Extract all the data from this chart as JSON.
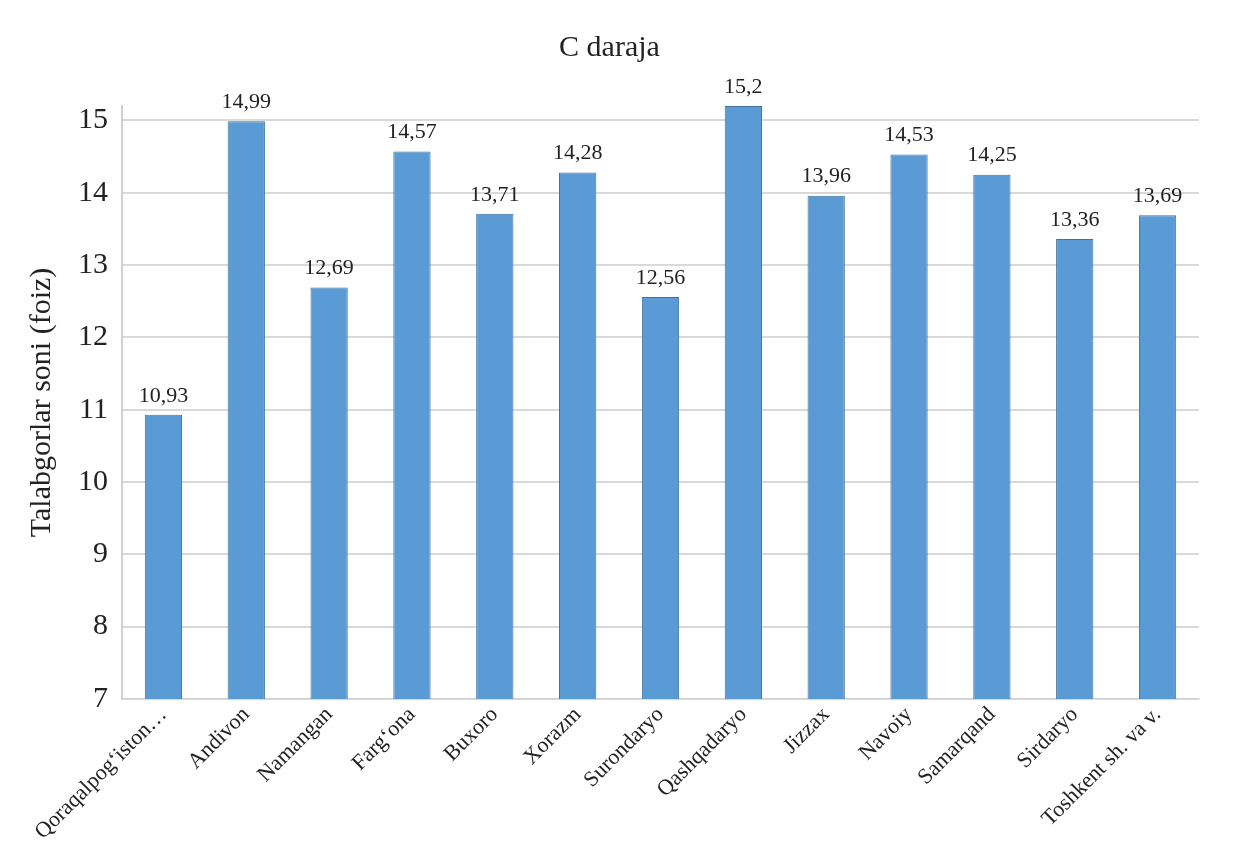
{
  "chart_data": {
    "type": "bar",
    "title": "C daraja",
    "ylabel": "Talabgorlar soni (foiz)",
    "categories": [
      "Qoraqalpog‘iston…",
      "Andivon",
      "Namangan",
      "Farg‘ona",
      "Buxoro",
      "Xorazm",
      "Surondaryo",
      "Qashqadaryo",
      "Jizzax",
      "Navoiy",
      "Samarqand",
      "Sirdaryo",
      "Toshkent sh. va v."
    ],
    "values": [
      10.93,
      14.99,
      12.69,
      14.57,
      13.71,
      14.28,
      12.56,
      15.2,
      13.96,
      14.53,
      14.25,
      13.36,
      13.69
    ],
    "value_labels": [
      "10,93",
      "14,99",
      "12,69",
      "14,57",
      "13,71",
      "14,28",
      "12,56",
      "15,2",
      "13,96",
      "14,53",
      "14,25",
      "13,36",
      "13,69"
    ],
    "color": "#5b9bd5",
    "ylim": [
      7,
      15.2
    ],
    "yticks": [
      7,
      8,
      9,
      10,
      11,
      12,
      13,
      14,
      15
    ],
    "grid": "y"
  }
}
